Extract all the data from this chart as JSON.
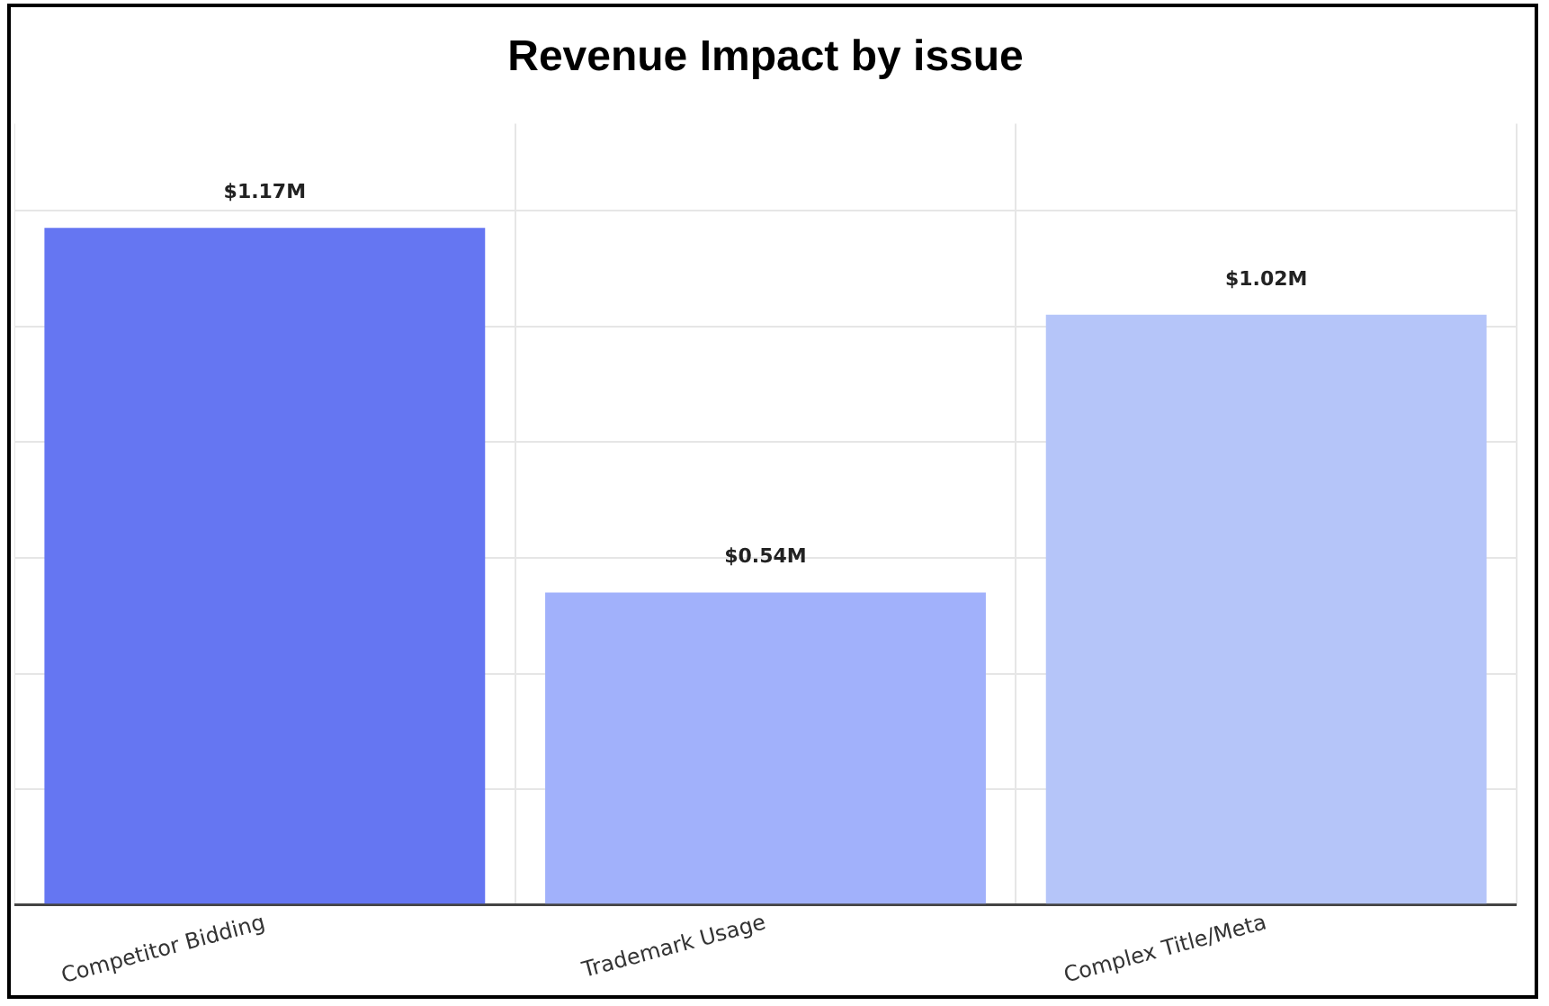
{
  "chart_data": {
    "type": "bar",
    "title": "Revenue Impact by issue",
    "categories": [
      "Competitor Bidding",
      "Trademark Usage",
      "Complex Title/Meta"
    ],
    "values": [
      1.17,
      0.54,
      1.02
    ],
    "colors": [
      "#6576f2",
      "#a1b1fb",
      "#b5c5f9"
    ],
    "value_labels": [
      "$1.17M",
      "$0.54M",
      "$1.02M"
    ],
    "ylim": [
      0,
      1.35
    ],
    "yticks": [
      {
        "value": 0,
        "label": null
      },
      {
        "value": 0.2,
        "label": null
      },
      {
        "value": 0.4,
        "label": null
      },
      {
        "value": 0.6,
        "label": null
      },
      {
        "value": 0.8,
        "label": null
      },
      {
        "value": 1.0,
        "label": null
      },
      {
        "value": 1.2,
        "label": null
      }
    ],
    "tick_labels": "x",
    "grid": true,
    "legend": false
  }
}
